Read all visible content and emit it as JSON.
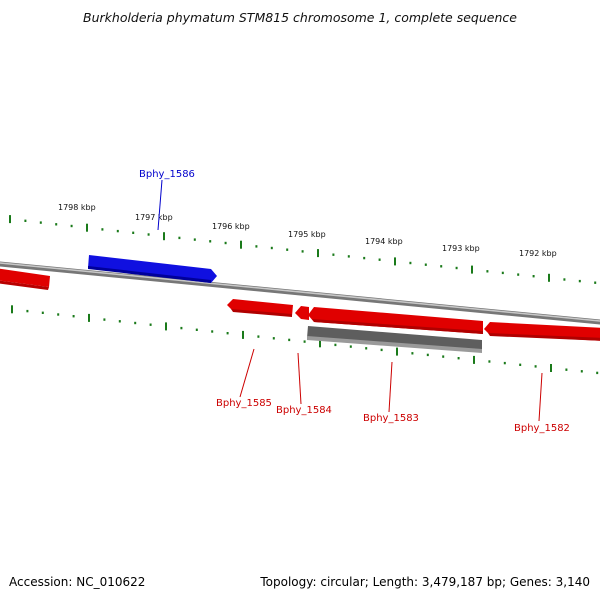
{
  "title": "Burkholderia phymatum STM815 chromosome 1, complete sequence",
  "footer": {
    "accession": "Accession: NC_010622",
    "summary": "Topology: circular; Length: 3,479,187 bp; Genes: 3,140"
  },
  "ticks": [
    "1798 kbp",
    "1797 kbp",
    "1796 kbp",
    "1795 kbp",
    "1794 kbp",
    "1793 kbp",
    "1792 kbp"
  ],
  "genes": [
    {
      "label": "Bphy_1586",
      "strand": "forward",
      "color": "#0000cc"
    },
    {
      "label": "Bphy_1585",
      "strand": "reverse",
      "color": "#cc0000"
    },
    {
      "label": "Bphy_1584",
      "strand": "reverse",
      "color": "#cc0000"
    },
    {
      "label": "Bphy_1583",
      "strand": "reverse",
      "color": "#cc0000"
    },
    {
      "label": "Bphy_1582",
      "strand": "reverse",
      "color": "#cc0000"
    }
  ],
  "colors": {
    "forward_gene": "#1010e0",
    "reverse_gene": "#e00000",
    "other_feature": "#606060",
    "backbone": "#8a8a8a",
    "tick": "#1a7a1a"
  }
}
